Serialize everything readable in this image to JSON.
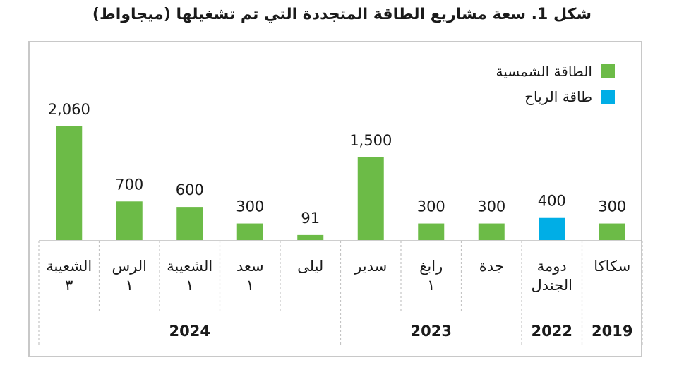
{
  "chart_data": {
    "type": "bar",
    "title": "شكل 1. سعة مشاريع الطاقة المتجددة التي تم تشغيلها (ميجاواط)",
    "categories": [
      {
        "label": "الشعيبة ٣",
        "year": "2024",
        "value": 2060,
        "value_label": "2,060",
        "series": "solar"
      },
      {
        "label": "الرس ١",
        "year": "2024",
        "value": 700,
        "value_label": "700",
        "series": "solar"
      },
      {
        "label": "الشعيبة ١",
        "year": "2024",
        "value": 600,
        "value_label": "600",
        "series": "solar"
      },
      {
        "label": "سعد ١",
        "year": "2024",
        "value": 300,
        "value_label": "300",
        "series": "solar"
      },
      {
        "label": "ليلى",
        "year": "2024",
        "value": 91,
        "value_label": "91",
        "series": "solar"
      },
      {
        "label": "سدير",
        "year": "2023",
        "value": 1500,
        "value_label": "1,500",
        "series": "solar"
      },
      {
        "label": "رابغ ١",
        "year": "2023",
        "value": 300,
        "value_label": "300",
        "series": "solar"
      },
      {
        "label": "جدة",
        "year": "2023",
        "value": 300,
        "value_label": "300",
        "series": "solar"
      },
      {
        "label": "دومة الجندل",
        "year": "2022",
        "value": 400,
        "value_label": "400",
        "series": "wind"
      },
      {
        "label": "سكاكا",
        "year": "2019",
        "value": 300,
        "value_label": "300",
        "series": "solar"
      }
    ],
    "years": [
      "2024",
      "2023",
      "2022",
      "2019"
    ],
    "series": [
      {
        "key": "solar",
        "name": "الطاقة الشمسية",
        "color": "#6cbb47"
      },
      {
        "key": "wind",
        "name": "طاقة الرياح",
        "color": "#00aee6"
      }
    ],
    "ylim": [
      0,
      2060
    ],
    "grid": false,
    "legend_position": "top-right"
  }
}
